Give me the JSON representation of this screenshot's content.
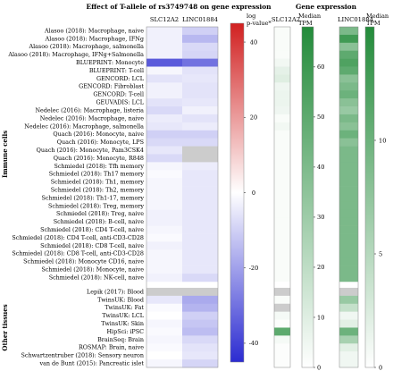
{
  "chart_data": [
    {
      "type": "heatmap",
      "title": "Effect of T-allele of rs3749748 on gene expression",
      "columns": [
        "SLC12A2",
        "LINC01884"
      ],
      "row_groups": [
        {
          "label": "Immune cells",
          "rows": [
            "Alasoo (2018): Macrophage, naive",
            "Alasoo (2018): Macrophage, IFNg",
            "Alasoo (2018): Macrophage, salmonella",
            "Alasoo (2018): Macrophage, IFNg+Salmonella",
            "BLUEPRINT: Monocyte",
            "BLUEPRINT: T-cell",
            "GENCORD: LCL",
            "GENCORD: Fibroblast",
            "GENCORD: T-cell",
            "GEUVADIS: LCL",
            "Nedelec (2016): Macrophage, listeria",
            "Nedelec (2016): Macrophage, naive",
            "Nedelec (2016): Macrophage, salmonella",
            "Quach (2016): Monocyte, naive",
            "Quach (2016): Monocyte, LPS",
            "Quach (2016): Monocyte, Pam3CSK4",
            "Quach (2016): Monocyte, R848",
            "Schmiedel (2018): Tfh memory",
            "Schmiedel (2018): Th17 memory",
            "Schmiedel (2018): Th1, memory",
            "Schmiedel (2018): Th2, memory",
            "Schmiedel (2018): Th1-17, memory",
            "Schmiedel (2018): Treg, memory",
            "Schmiedel (2018): Treg, naive",
            "Schmiedel (2018): B-cell, naive",
            "Schmiedel (2018): CD4 T-cell, naive",
            "Schmiedel (2018): CD4 T-cell, anti-CD3-CD28",
            "Schmiedel (2018): CD8 T-cell, naive",
            "Schmiedel (2018): CD8 T-cell, anti-CD3-CD28",
            "Schmiedel (2018): Monocyte CD16, naive",
            "Schmiedel (2018): Monocyte, naive",
            "Schmiedel (2018): NK-cell, naive"
          ]
        },
        {
          "label": "Other tissues",
          "rows": [
            "Lepik (2017): Blood",
            "TwinsUK: Blood",
            "TwinsUK: Fat",
            "TwinsUK: LCL",
            "TwinsUK: Skin",
            "HipSci: iPSC",
            "BrainSeq: Brain",
            "ROSMAP: Brain, naive",
            "Schwartzentruber (2018): Sensory neuron",
            "van de Bunt (2015): Pancreatic islet"
          ]
        }
      ],
      "values": {
        "SLC12A2": [
          -3,
          -3,
          -3,
          -3,
          -35,
          -2,
          -6,
          -3,
          -3,
          -6,
          -8,
          -4,
          -5,
          -10,
          -8,
          -5,
          -8,
          -2,
          -1,
          -2,
          -2,
          -2,
          -2,
          -3,
          -3,
          -2,
          -1,
          -3,
          -2,
          -2,
          -2,
          -3,
          null,
          -5,
          -1,
          0,
          -2,
          -1,
          -2,
          -1,
          0,
          -2
        ],
        "LINC01884": [
          -10,
          -15,
          -8,
          -9,
          -30,
          -6,
          -5,
          -6,
          -6,
          -5,
          -3,
          -6,
          -4,
          -10,
          -8,
          null,
          null,
          -4,
          -5,
          -5,
          -5,
          -5,
          -5,
          -5,
          -5,
          -5,
          -5,
          -5,
          -5,
          -5,
          -5,
          -8,
          null,
          -18,
          -16,
          -10,
          -12,
          -14,
          -8,
          -6,
          -5,
          -9
        ]
      },
      "colorbar": {
        "label": "log\np-value*",
        "range": [
          -45,
          45
        ],
        "ticks": [
          40,
          20,
          0,
          -20,
          -40
        ],
        "low_color": "#2b2bd1",
        "mid_color": "#ffffff",
        "high_color": "#d12020",
        "missing_color": "#cccccc"
      }
    },
    {
      "type": "heatmap",
      "title": "Gene expression",
      "columns": [
        "SLC12A2"
      ],
      "colorbar": {
        "label": "Median\nTPM",
        "range": [
          0,
          68
        ],
        "ticks": [
          0,
          10,
          20,
          30,
          40,
          50,
          60
        ],
        "low_color": "#ffffff",
        "high_color": "#238b3a",
        "missing_color": "#cccccc"
      },
      "values": [
        2,
        2,
        2,
        2,
        4,
        8,
        10,
        5,
        6,
        6,
        5,
        2,
        4,
        2,
        2,
        2,
        2,
        2,
        2,
        2,
        2,
        2,
        2,
        2,
        2,
        2,
        2,
        2,
        2,
        2,
        2,
        2,
        null,
        2,
        null,
        3,
        1,
        50,
        3,
        1,
        1,
        1
      ]
    },
    {
      "type": "heatmap",
      "title": "",
      "columns": [
        "LINC01884"
      ],
      "colorbar": {
        "label": "Median\nTPM",
        "range": [
          0,
          15
        ],
        "ticks": [
          0,
          5,
          10
        ],
        "low_color": "#ffffff",
        "high_color": "#238b3a",
        "missing_color": "#cccccc"
      },
      "values": [
        9,
        13,
        8,
        11,
        12,
        11,
        8,
        9,
        10,
        8,
        7,
        9,
        8,
        10,
        8,
        9,
        9,
        9,
        9,
        9,
        9,
        9,
        9,
        9,
        9,
        9,
        9,
        9,
        9,
        9,
        9,
        9,
        null,
        7,
        4,
        1,
        2,
        10,
        6,
        2,
        1,
        1
      ]
    }
  ]
}
